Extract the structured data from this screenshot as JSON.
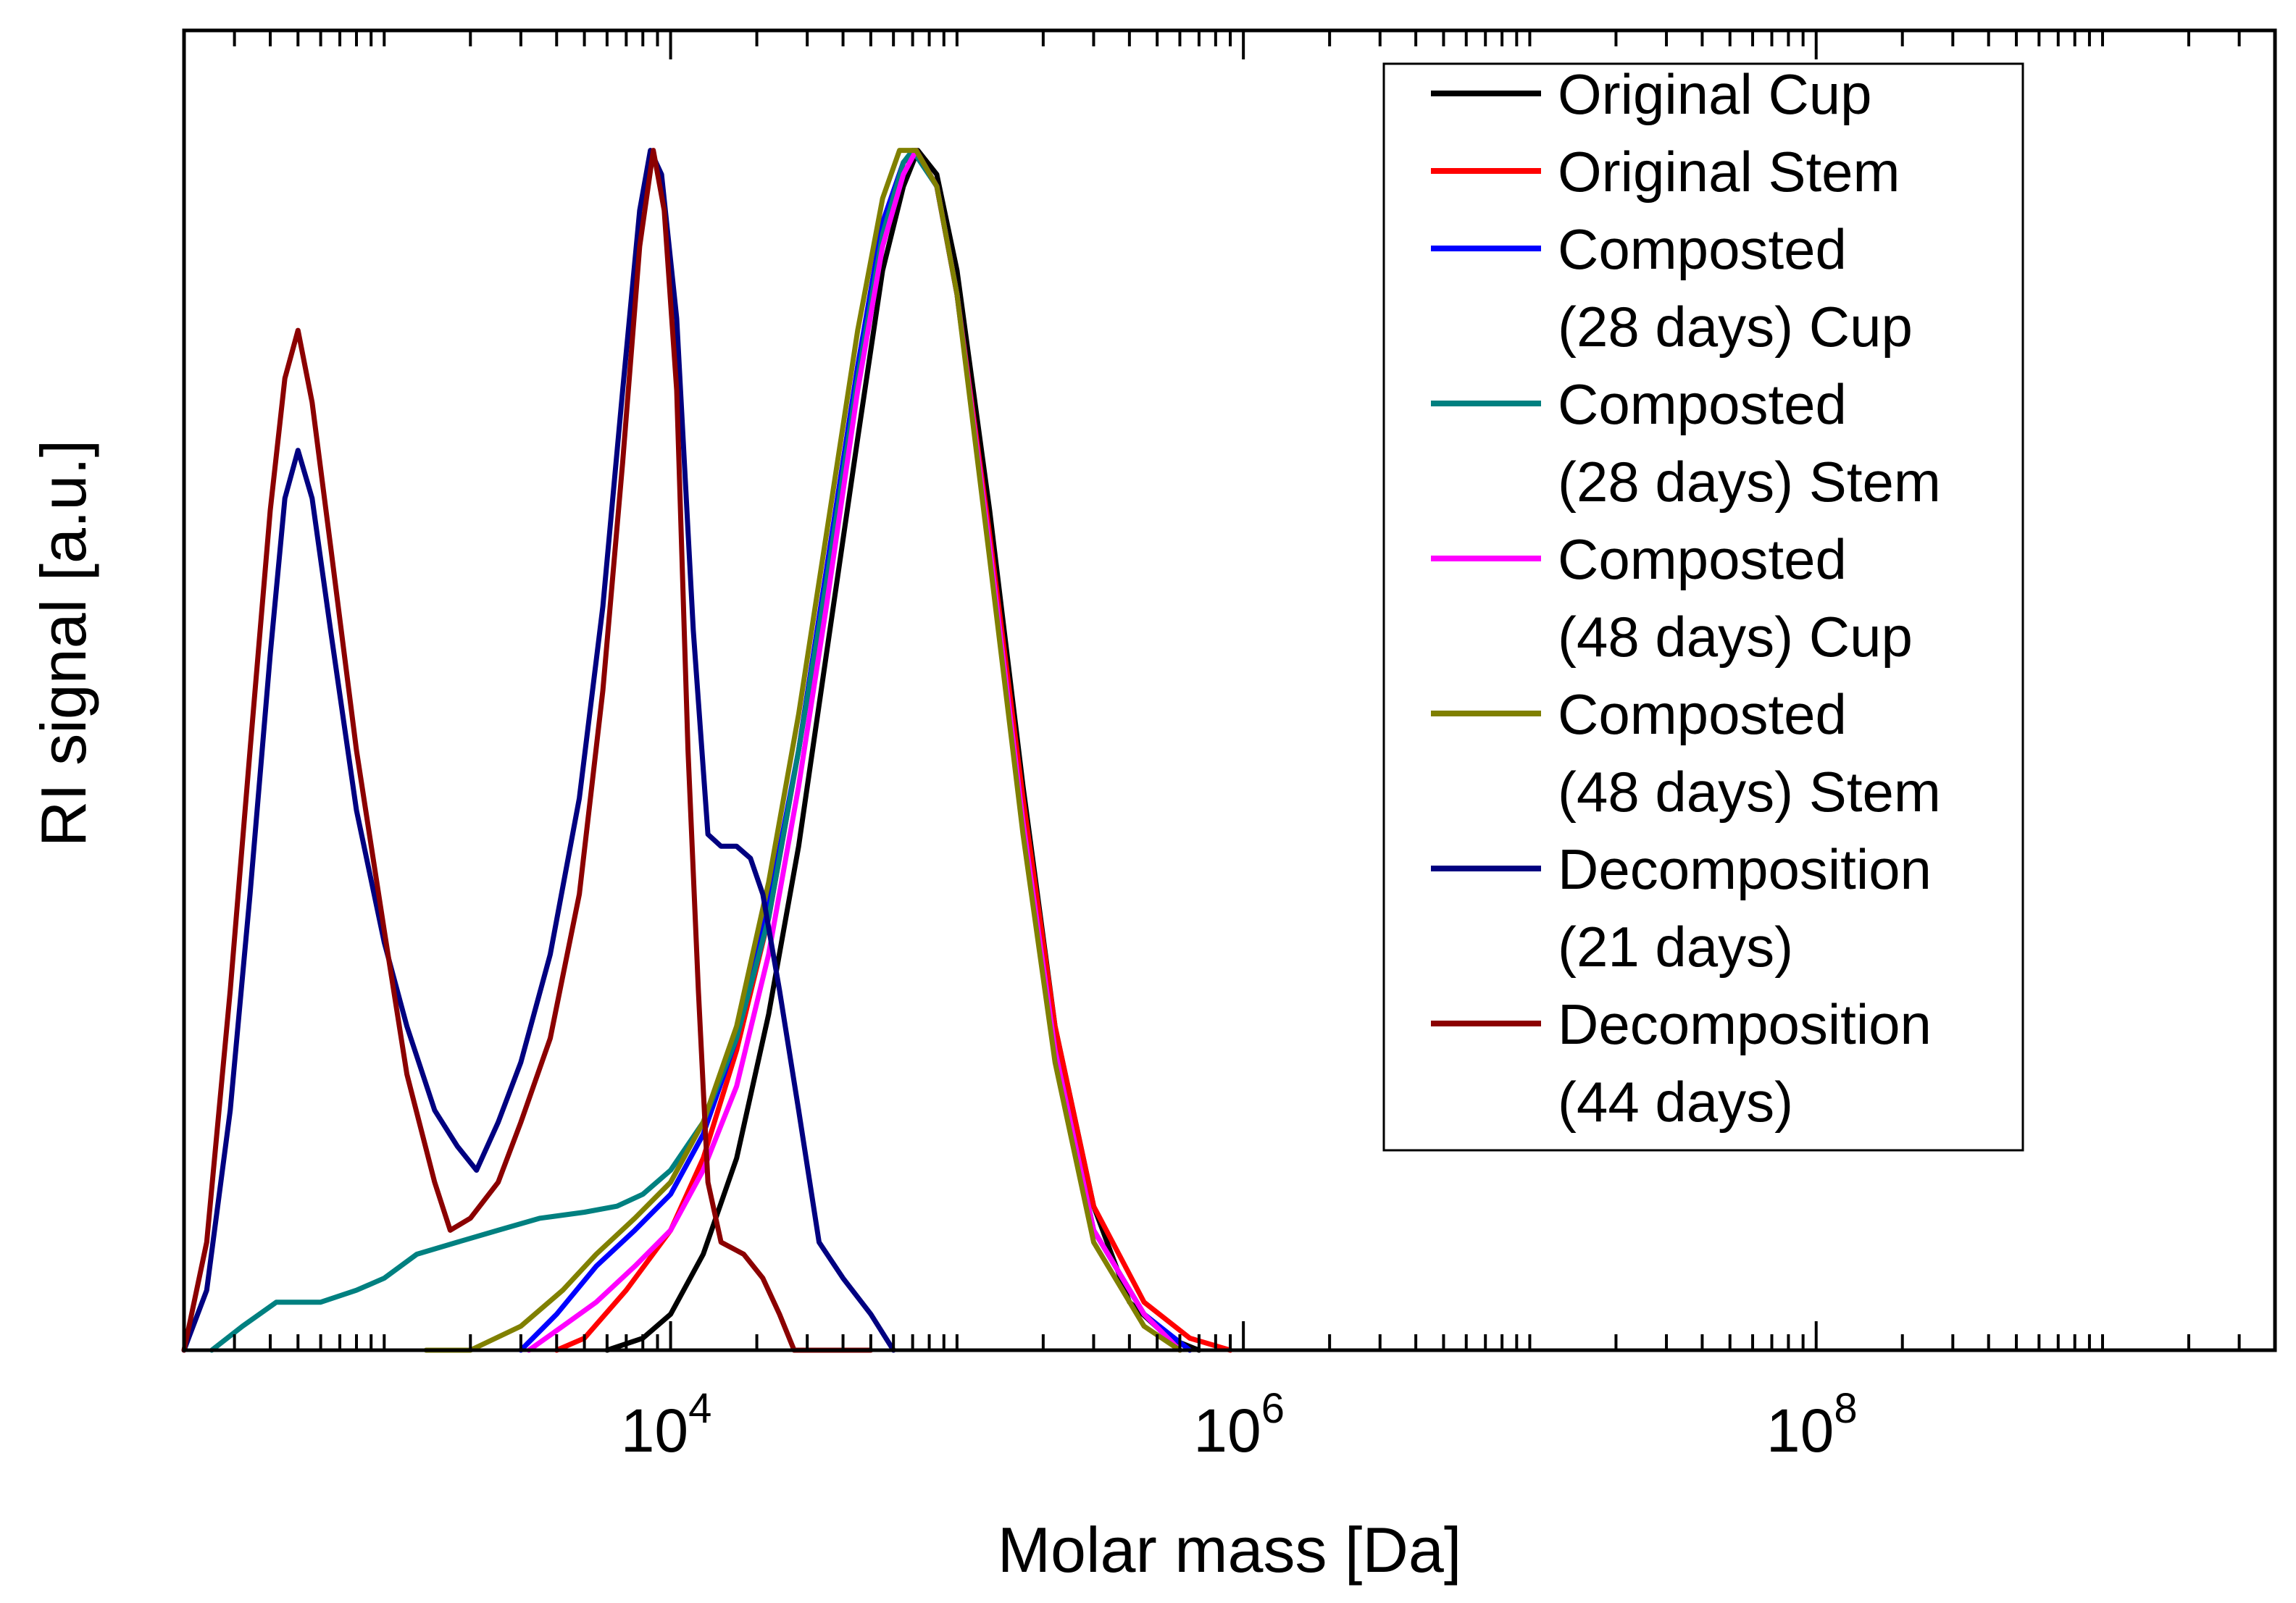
{
  "chart_data": {
    "type": "line",
    "title": "",
    "xlabel": "Molar mass [Da]",
    "ylabel": "RI signal [a.u.]",
    "xscale": "log",
    "xlim": [
      200,
      4000000000
    ],
    "ylim": [
      0,
      1.1
    ],
    "x_ticks": [
      {
        "value": 10000,
        "base": "10",
        "exp": "4"
      },
      {
        "value": 1000000,
        "base": "10",
        "exp": "6"
      },
      {
        "value": 100000000,
        "base": "10",
        "exp": "8"
      }
    ],
    "legend_position": "top-right",
    "series": [
      {
        "name": "Original Cup",
        "label_lines": [
          "Original Cup"
        ],
        "color": "#000000",
        "points": [
          [
            6000,
            0
          ],
          [
            8000,
            0.01
          ],
          [
            10000,
            0.03
          ],
          [
            13000,
            0.08
          ],
          [
            17000,
            0.16
          ],
          [
            22000,
            0.28
          ],
          [
            28000,
            0.42
          ],
          [
            35000,
            0.58
          ],
          [
            45000,
            0.76
          ],
          [
            55000,
            0.9
          ],
          [
            65000,
            0.97
          ],
          [
            73000,
            1.0
          ],
          [
            85000,
            0.98
          ],
          [
            100000,
            0.9
          ],
          [
            130000,
            0.7
          ],
          [
            170000,
            0.47
          ],
          [
            220000,
            0.27
          ],
          [
            300000,
            0.12
          ],
          [
            400000,
            0.04
          ],
          [
            550000,
            0.01
          ],
          [
            700000,
            0
          ]
        ]
      },
      {
        "name": "Original Stem",
        "label_lines": [
          "Original Stem"
        ],
        "color": "#ff0000",
        "points": [
          [
            4000,
            0
          ],
          [
            5000,
            0.01
          ],
          [
            7000,
            0.05
          ],
          [
            10000,
            0.1
          ],
          [
            13000,
            0.16
          ],
          [
            17000,
            0.25
          ],
          [
            22000,
            0.36
          ],
          [
            28000,
            0.5
          ],
          [
            35000,
            0.65
          ],
          [
            45000,
            0.82
          ],
          [
            55000,
            0.94
          ],
          [
            65000,
            0.99
          ],
          [
            72000,
            1.0
          ],
          [
            85000,
            0.97
          ],
          [
            100000,
            0.88
          ],
          [
            130000,
            0.68
          ],
          [
            170000,
            0.46
          ],
          [
            220000,
            0.27
          ],
          [
            300000,
            0.12
          ],
          [
            450000,
            0.04
          ],
          [
            650000,
            0.01
          ],
          [
            900000,
            0
          ]
        ]
      },
      {
        "name": "Composted (28 days) Cup",
        "label_lines": [
          "Composted",
          "(28 days) Cup"
        ],
        "color": "#0000ff",
        "points": [
          [
            3000,
            0
          ],
          [
            4000,
            0.03
          ],
          [
            5500,
            0.07
          ],
          [
            7500,
            0.1
          ],
          [
            10000,
            0.13
          ],
          [
            13000,
            0.18
          ],
          [
            17000,
            0.26
          ],
          [
            22000,
            0.37
          ],
          [
            28000,
            0.5
          ],
          [
            35000,
            0.65
          ],
          [
            45000,
            0.82
          ],
          [
            55000,
            0.94
          ],
          [
            65000,
            0.99
          ],
          [
            71000,
            1.0
          ],
          [
            85000,
            0.97
          ],
          [
            100000,
            0.88
          ],
          [
            130000,
            0.67
          ],
          [
            170000,
            0.44
          ],
          [
            220000,
            0.25
          ],
          [
            300000,
            0.1
          ],
          [
            450000,
            0.03
          ],
          [
            650000,
            0
          ]
        ]
      },
      {
        "name": "Composted (28 days) Stem",
        "label_lines": [
          "Composted",
          "(28 days) Stem"
        ],
        "color": "#008080",
        "points": [
          [
            250,
            0
          ],
          [
            320,
            0.02
          ],
          [
            420,
            0.04
          ],
          [
            600,
            0.04
          ],
          [
            800,
            0.05
          ],
          [
            1000,
            0.06
          ],
          [
            1300,
            0.08
          ],
          [
            1800,
            0.09
          ],
          [
            2500,
            0.1
          ],
          [
            3500,
            0.11
          ],
          [
            5000,
            0.115
          ],
          [
            6500,
            0.12
          ],
          [
            8000,
            0.13
          ],
          [
            10000,
            0.15
          ],
          [
            13000,
            0.19
          ],
          [
            17000,
            0.26
          ],
          [
            22000,
            0.36
          ],
          [
            28000,
            0.5
          ],
          [
            35000,
            0.64
          ],
          [
            45000,
            0.81
          ],
          [
            55000,
            0.93
          ],
          [
            65000,
            0.99
          ],
          [
            70000,
            1.0
          ],
          [
            85000,
            0.97
          ],
          [
            100000,
            0.88
          ],
          [
            130000,
            0.67
          ],
          [
            170000,
            0.44
          ],
          [
            220000,
            0.25
          ],
          [
            300000,
            0.1
          ],
          [
            450000,
            0.03
          ],
          [
            600000,
            0
          ]
        ]
      },
      {
        "name": "Composted (48 days) Cup",
        "label_lines": [
          "Composted",
          "(48 days) Cup"
        ],
        "color": "#ff00ff",
        "points": [
          [
            3200,
            0
          ],
          [
            4200,
            0.02
          ],
          [
            5500,
            0.04
          ],
          [
            7500,
            0.07
          ],
          [
            10000,
            0.1
          ],
          [
            13000,
            0.15
          ],
          [
            17000,
            0.22
          ],
          [
            22000,
            0.33
          ],
          [
            28000,
            0.47
          ],
          [
            35000,
            0.62
          ],
          [
            45000,
            0.8
          ],
          [
            55000,
            0.92
          ],
          [
            65000,
            0.98
          ],
          [
            72000,
            1.0
          ],
          [
            85000,
            0.97
          ],
          [
            100000,
            0.88
          ],
          [
            130000,
            0.67
          ],
          [
            170000,
            0.44
          ],
          [
            220000,
            0.25
          ],
          [
            300000,
            0.1
          ],
          [
            450000,
            0.03
          ],
          [
            600000,
            0
          ]
        ]
      },
      {
        "name": "Composted (48 days) Stem",
        "label_lines": [
          "Composted",
          "(48 days) Stem"
        ],
        "color": "#808000",
        "points": [
          [
            1400,
            0
          ],
          [
            2000,
            0
          ],
          [
            3000,
            0.02
          ],
          [
            4200,
            0.05
          ],
          [
            5500,
            0.08
          ],
          [
            7500,
            0.11
          ],
          [
            10000,
            0.14
          ],
          [
            13000,
            0.19
          ],
          [
            17000,
            0.27
          ],
          [
            22000,
            0.39
          ],
          [
            28000,
            0.53
          ],
          [
            35000,
            0.68
          ],
          [
            45000,
            0.85
          ],
          [
            55000,
            0.96
          ],
          [
            63000,
            1.0
          ],
          [
            72000,
            1.0
          ],
          [
            85000,
            0.97
          ],
          [
            100000,
            0.88
          ],
          [
            130000,
            0.66
          ],
          [
            170000,
            0.43
          ],
          [
            220000,
            0.24
          ],
          [
            300000,
            0.09
          ],
          [
            450000,
            0.02
          ],
          [
            600000,
            0
          ]
        ]
      },
      {
        "name": "Decomposition (21 days)",
        "label_lines": [
          "Decomposition",
          "(21 days)"
        ],
        "color": "#000080",
        "points": [
          [
            200,
            0
          ],
          [
            240,
            0.05
          ],
          [
            290,
            0.2
          ],
          [
            340,
            0.38
          ],
          [
            400,
            0.58
          ],
          [
            450,
            0.71
          ],
          [
            500,
            0.75
          ],
          [
            560,
            0.71
          ],
          [
            650,
            0.6
          ],
          [
            800,
            0.45
          ],
          [
            1000,
            0.34
          ],
          [
            1200,
            0.27
          ],
          [
            1500,
            0.2
          ],
          [
            1800,
            0.17
          ],
          [
            2100,
            0.15
          ],
          [
            2500,
            0.19
          ],
          [
            3000,
            0.24
          ],
          [
            3800,
            0.33
          ],
          [
            4800,
            0.46
          ],
          [
            5800,
            0.62
          ],
          [
            6800,
            0.8
          ],
          [
            7800,
            0.95
          ],
          [
            8500,
            1.0
          ],
          [
            9300,
            0.98
          ],
          [
            10500,
            0.86
          ],
          [
            12000,
            0.6
          ],
          [
            13500,
            0.43
          ],
          [
            15000,
            0.42
          ],
          [
            17000,
            0.42
          ],
          [
            19000,
            0.41
          ],
          [
            21000,
            0.38
          ],
          [
            24000,
            0.3
          ],
          [
            28000,
            0.2
          ],
          [
            33000,
            0.09
          ],
          [
            40000,
            0.06
          ],
          [
            50000,
            0.03
          ],
          [
            60000,
            0
          ]
        ]
      },
      {
        "name": "Decomposition (44 days)",
        "label_lines": [
          "Decomposition",
          "(44 days)"
        ],
        "color": "#8b0000",
        "points": [
          [
            200,
            0
          ],
          [
            240,
            0.09
          ],
          [
            290,
            0.3
          ],
          [
            340,
            0.5
          ],
          [
            400,
            0.7
          ],
          [
            450,
            0.81
          ],
          [
            500,
            0.85
          ],
          [
            560,
            0.79
          ],
          [
            650,
            0.67
          ],
          [
            800,
            0.5
          ],
          [
            1000,
            0.35
          ],
          [
            1200,
            0.23
          ],
          [
            1500,
            0.14
          ],
          [
            1700,
            0.1
          ],
          [
            2000,
            0.11
          ],
          [
            2500,
            0.14
          ],
          [
            3000,
            0.19
          ],
          [
            3800,
            0.26
          ],
          [
            4800,
            0.38
          ],
          [
            5800,
            0.55
          ],
          [
            6800,
            0.74
          ],
          [
            7800,
            0.92
          ],
          [
            8700,
            1.0
          ],
          [
            9500,
            0.95
          ],
          [
            10500,
            0.8
          ],
          [
            11500,
            0.5
          ],
          [
            12500,
            0.3
          ],
          [
            13500,
            0.14
          ],
          [
            15000,
            0.09
          ],
          [
            18000,
            0.08
          ],
          [
            21000,
            0.06
          ],
          [
            24000,
            0.03
          ],
          [
            27000,
            0
          ],
          [
            50000,
            0
          ]
        ]
      }
    ]
  }
}
